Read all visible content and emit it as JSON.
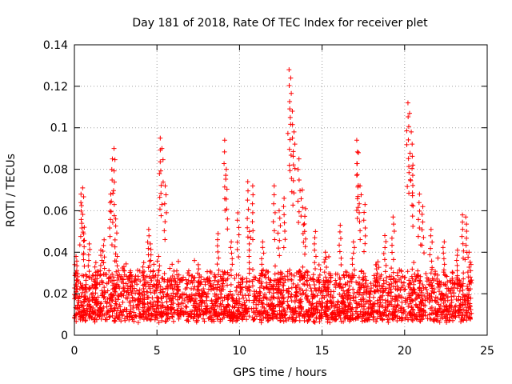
{
  "chart_data": {
    "type": "scatter",
    "title": "Day 181 of 2018, Rate Of TEC Index for receiver plet",
    "xlabel": "GPS time / hours",
    "ylabel": "ROTI / TECUs",
    "xlim": [
      0,
      25
    ],
    "ylim": [
      0,
      0.14
    ],
    "grid": true,
    "x_ticks": [
      0,
      5,
      10,
      15,
      20,
      25
    ],
    "x_tick_labels": [
      "0",
      "5",
      "10",
      "15",
      "20",
      "25"
    ],
    "y_ticks": [
      0,
      0.02,
      0.04,
      0.06,
      0.08,
      0.1,
      0.12,
      0.14
    ],
    "y_tick_labels": [
      "0",
      "0.02",
      "0.04",
      "0.06",
      "0.08",
      "0.1",
      "0.12",
      "0.14"
    ],
    "marker": "+",
    "color": "#ff0000",
    "series": [
      {
        "name": "ROTI",
        "description_points": "approximate sampled values; dense band between ~0.005 and ~0.03 for all hours 0-24",
        "x": [
          0.1,
          0.4,
          0.5,
          0.6,
          0.9,
          1.3,
          1.6,
          1.8,
          2.2,
          2.3,
          2.4,
          2.5,
          2.6,
          3.0,
          3.4,
          4.2,
          4.5,
          4.6,
          5.1,
          5.2,
          5.3,
          5.5,
          6.2,
          7.5,
          8.7,
          9.1,
          9.2,
          9.5,
          9.9,
          10.5,
          10.6,
          10.8,
          11.4,
          12.1,
          12.4,
          12.7,
          13.0,
          13.1,
          13.2,
          13.3,
          13.6,
          13.8,
          14.0,
          14.6,
          15.2,
          16.1,
          16.9,
          17.1,
          17.2,
          17.3,
          17.6,
          18.3,
          18.8,
          19.3,
          20.2,
          20.3,
          20.4,
          20.5,
          20.9,
          21.1,
          21.6,
          22.4,
          23.2,
          23.5,
          23.7,
          23.9
        ],
        "y": [
          0.038,
          0.068,
          0.071,
          0.052,
          0.044,
          0.035,
          0.041,
          0.046,
          0.068,
          0.085,
          0.09,
          0.056,
          0.038,
          0.033,
          0.031,
          0.035,
          0.051,
          0.044,
          0.038,
          0.095,
          0.09,
          0.072,
          0.031,
          0.034,
          0.049,
          0.094,
          0.08,
          0.045,
          0.059,
          0.074,
          0.05,
          0.072,
          0.045,
          0.072,
          0.06,
          0.066,
          0.128,
          0.124,
          0.108,
          0.098,
          0.085,
          0.07,
          0.061,
          0.05,
          0.04,
          0.053,
          0.045,
          0.094,
          0.088,
          0.072,
          0.063,
          0.034,
          0.048,
          0.057,
          0.112,
          0.107,
          0.098,
          0.082,
          0.068,
          0.062,
          0.051,
          0.045,
          0.041,
          0.058,
          0.057,
          0.04
        ]
      }
    ]
  }
}
